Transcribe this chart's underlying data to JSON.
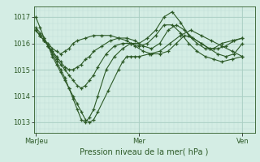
{
  "xlabel": "Pression niveau de la mer( hPa )",
  "background_color": "#d4ede4",
  "plot_bg_color": "#d4ede4",
  "grid_color_major": "#aacfc4",
  "grid_color_minor": "#c0ddd6",
  "line_color": "#2d5a27",
  "ylim": [
    1012.6,
    1017.4
  ],
  "yticks": [
    1013,
    1014,
    1015,
    1016,
    1017
  ],
  "xtick_labels": [
    "MarJeu",
    "Mer",
    "Ven"
  ],
  "xtick_positions": [
    0.0,
    0.5,
    1.0
  ],
  "series": [
    {
      "x": [
        0.0,
        0.02,
        0.04,
        0.06,
        0.08,
        0.1,
        0.12,
        0.14,
        0.16,
        0.18,
        0.2,
        0.22,
        0.24,
        0.26,
        0.28,
        0.3,
        0.35,
        0.4,
        0.42,
        0.44,
        0.46,
        0.48,
        0.5,
        0.55,
        0.6,
        0.65,
        0.7,
        0.75,
        0.8,
        0.85,
        0.9,
        0.95,
        1.0
      ],
      "y": [
        1017.0,
        1016.6,
        1016.2,
        1015.9,
        1015.5,
        1015.2,
        1014.9,
        1014.6,
        1014.3,
        1014.0,
        1013.7,
        1013.4,
        1013.1,
        1013.0,
        1013.1,
        1013.4,
        1014.2,
        1015.0,
        1015.3,
        1015.5,
        1015.5,
        1015.5,
        1015.5,
        1015.6,
        1015.7,
        1016.0,
        1016.3,
        1016.5,
        1016.3,
        1016.1,
        1015.9,
        1015.7,
        1015.5
      ]
    },
    {
      "x": [
        0.0,
        0.02,
        0.04,
        0.06,
        0.08,
        0.1,
        0.12,
        0.14,
        0.16,
        0.18,
        0.2,
        0.22,
        0.24,
        0.26,
        0.28,
        0.3,
        0.34,
        0.38,
        0.42,
        0.46,
        0.5,
        0.54,
        0.58,
        0.62,
        0.66,
        0.7,
        0.74,
        0.78,
        0.82,
        0.86,
        0.9,
        0.95,
        1.0
      ],
      "y": [
        1016.6,
        1016.4,
        1016.2,
        1015.9,
        1015.6,
        1015.3,
        1015.0,
        1014.7,
        1014.3,
        1013.9,
        1013.5,
        1013.1,
        1013.0,
        1013.2,
        1013.5,
        1014.0,
        1015.0,
        1015.5,
        1015.8,
        1016.0,
        1016.0,
        1016.2,
        1016.5,
        1017.0,
        1017.2,
        1016.8,
        1016.3,
        1016.0,
        1015.8,
        1015.8,
        1016.0,
        1016.1,
        1016.2
      ]
    },
    {
      "x": [
        0.0,
        0.02,
        0.04,
        0.06,
        0.08,
        0.1,
        0.12,
        0.14,
        0.16,
        0.18,
        0.2,
        0.22,
        0.24,
        0.26,
        0.28,
        0.3,
        0.34,
        0.38,
        0.42,
        0.46,
        0.5,
        0.54,
        0.58,
        0.62,
        0.66,
        0.7,
        0.74,
        0.78,
        0.82,
        0.86,
        0.9,
        0.95,
        1.0
      ],
      "y": [
        1016.5,
        1016.3,
        1016.1,
        1015.9,
        1015.7,
        1015.4,
        1015.2,
        1015.0,
        1014.8,
        1014.6,
        1014.4,
        1014.3,
        1014.4,
        1014.6,
        1014.8,
        1015.1,
        1015.6,
        1015.9,
        1016.0,
        1016.0,
        1015.9,
        1016.0,
        1016.3,
        1016.7,
        1016.7,
        1016.4,
        1016.0,
        1015.7,
        1015.5,
        1015.4,
        1015.3,
        1015.4,
        1015.5
      ]
    },
    {
      "x": [
        0.0,
        0.02,
        0.04,
        0.06,
        0.08,
        0.1,
        0.12,
        0.14,
        0.16,
        0.18,
        0.2,
        0.22,
        0.24,
        0.26,
        0.28,
        0.32,
        0.36,
        0.4,
        0.44,
        0.48,
        0.52,
        0.56,
        0.6,
        0.64,
        0.68,
        0.72,
        0.76,
        0.8,
        0.84,
        0.88,
        0.92,
        0.96,
        1.0
      ],
      "y": [
        1016.5,
        1016.3,
        1016.1,
        1015.9,
        1015.7,
        1015.5,
        1015.3,
        1015.1,
        1015.0,
        1015.0,
        1015.1,
        1015.2,
        1015.4,
        1015.5,
        1015.7,
        1015.9,
        1016.1,
        1016.2,
        1016.2,
        1016.1,
        1015.9,
        1015.8,
        1016.0,
        1016.5,
        1016.7,
        1016.5,
        1016.2,
        1016.0,
        1015.8,
        1015.8,
        1015.9,
        1016.1,
        1016.2
      ]
    },
    {
      "x": [
        0.0,
        0.02,
        0.04,
        0.06,
        0.08,
        0.1,
        0.12,
        0.14,
        0.16,
        0.18,
        0.2,
        0.24,
        0.28,
        0.32,
        0.36,
        0.4,
        0.44,
        0.48,
        0.52,
        0.56,
        0.6,
        0.64,
        0.68,
        0.72,
        0.76,
        0.8,
        0.84,
        0.88,
        0.92,
        0.96,
        1.0
      ],
      "y": [
        1016.5,
        1016.3,
        1016.1,
        1016.0,
        1015.8,
        1015.7,
        1015.6,
        1015.7,
        1015.8,
        1016.0,
        1016.1,
        1016.2,
        1016.3,
        1016.3,
        1016.3,
        1016.2,
        1016.1,
        1015.9,
        1015.7,
        1015.6,
        1015.6,
        1015.7,
        1016.0,
        1016.3,
        1016.2,
        1016.0,
        1015.8,
        1015.6,
        1015.5,
        1015.6,
        1016.0
      ]
    }
  ]
}
